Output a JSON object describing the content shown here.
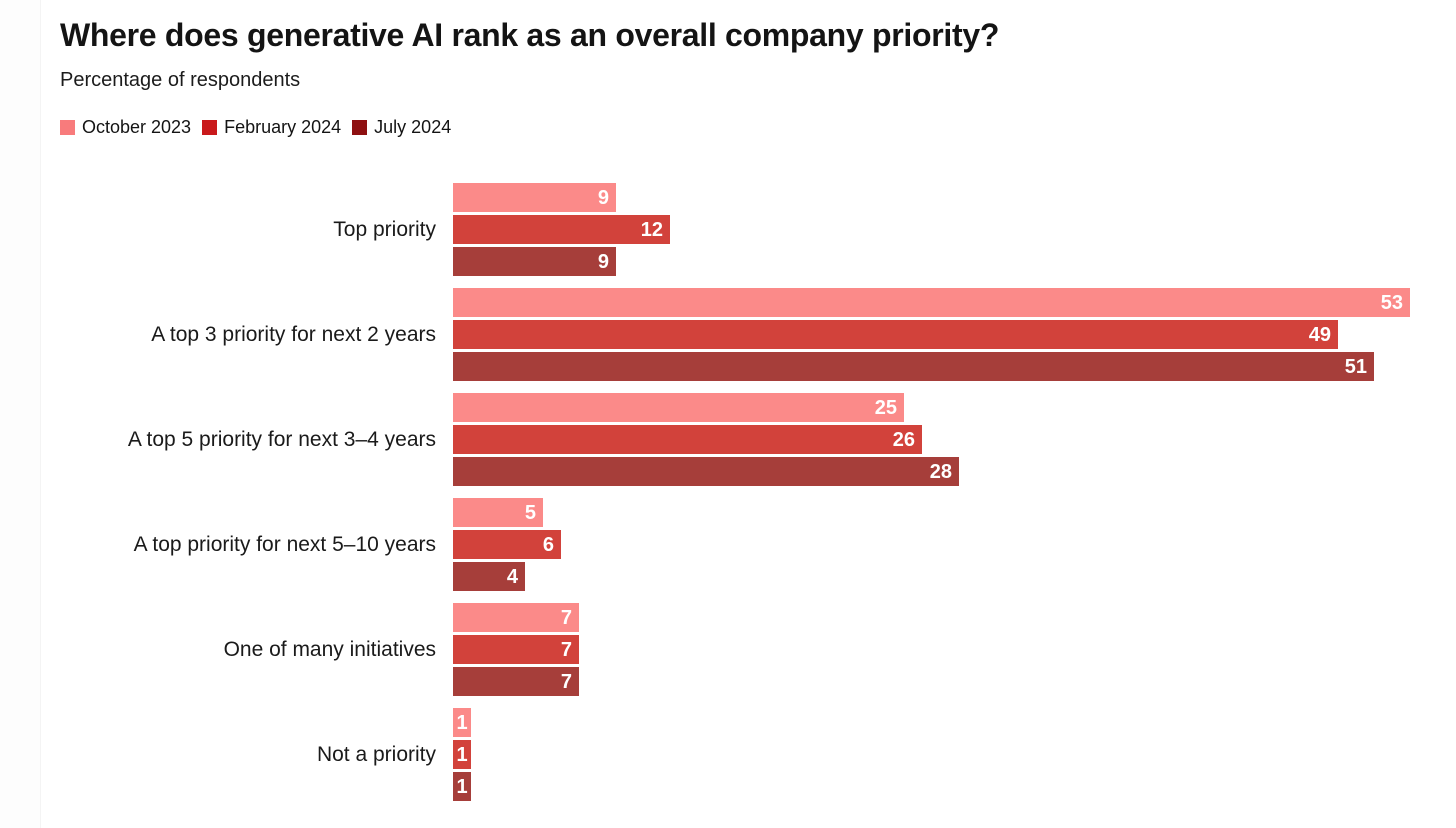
{
  "title": "Where does generative AI rank as an overall company priority?",
  "subtitle": "Percentage of respondents",
  "chart_data": {
    "type": "bar",
    "orientation": "horizontal",
    "title": "Where does generative AI rank as an overall company priority?",
    "ylabel": "",
    "xlabel": "Percentage of respondents",
    "xlim": [
      0,
      53
    ],
    "grid": false,
    "legend_position": "top",
    "value_labels": "inside-end, white bold",
    "categories": [
      "Top priority",
      "A top 3 priority for next 2 years",
      "A top 5 priority for next 3–4 years",
      "A top priority for next 5–10 years",
      "One of many initiatives",
      "Not a priority"
    ],
    "series": [
      {
        "name": "October 2023",
        "bar_color": "#fb8a89",
        "legend_color": "#f87b7c",
        "values": [
          9,
          53,
          25,
          5,
          7,
          1
        ]
      },
      {
        "name": "February 2024",
        "bar_color": "#d2423b",
        "legend_color": "#c9191b",
        "values": [
          12,
          49,
          26,
          6,
          7,
          1
        ]
      },
      {
        "name": "July 2024",
        "bar_color": "#a63e3a",
        "legend_color": "#8e1011",
        "values": [
          9,
          51,
          28,
          4,
          7,
          1
        ]
      }
    ],
    "text_color": "#1a1a1a"
  }
}
